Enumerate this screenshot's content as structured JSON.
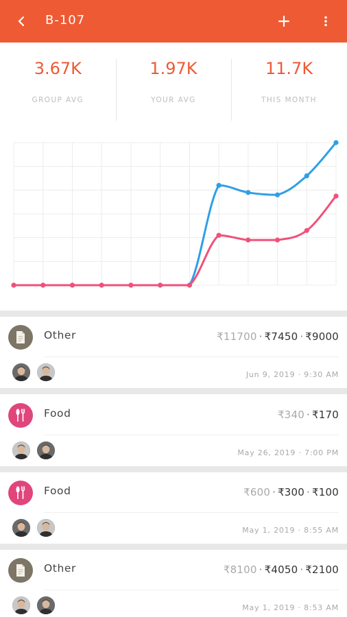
{
  "app_bar": {
    "title": "B-107",
    "back_icon": "chevron-left-icon",
    "add_icon": "plus-icon",
    "more_icon": "more-vertical-icon",
    "color": "#ee5a33"
  },
  "stats": [
    {
      "value": "3.67K",
      "label": "GROUP AVG"
    },
    {
      "value": "1.97K",
      "label": "YOUR AVG"
    },
    {
      "value": "11.7K",
      "label": "THIS MONTH"
    }
  ],
  "chart_data": {
    "type": "line",
    "title": "",
    "xlabel": "",
    "ylabel": "",
    "grid": true,
    "x": [
      1,
      2,
      3,
      4,
      5,
      6,
      7,
      8,
      9,
      10,
      11,
      12
    ],
    "ylim": [
      0,
      12000
    ],
    "series": [
      {
        "color": "#2e9fe6",
        "values": [
          0,
          0,
          0,
          0,
          0,
          0,
          0,
          8400,
          7800,
          7600,
          9200,
          12000
        ]
      },
      {
        "color": "#f0507a",
        "values": [
          0,
          0,
          0,
          0,
          0,
          0,
          0,
          4200,
          3800,
          3800,
          4600,
          7500
        ]
      }
    ]
  },
  "expenses": [
    {
      "category": "Other",
      "icon": "document-icon",
      "icon_color": "#7d7565",
      "amount_total": "₹11700",
      "shares": [
        "₹7450",
        "₹9000"
      ],
      "timestamp": "Jun 9, 2019 · 9:30 AM"
    },
    {
      "category": "Food",
      "icon": "fork-spoon-icon",
      "icon_color": "#e0457b",
      "amount_total": "₹340",
      "shares": [
        "₹170"
      ],
      "timestamp": "May 26, 2019 · 7:00 PM"
    },
    {
      "category": "Food",
      "icon": "fork-spoon-icon",
      "icon_color": "#e0457b",
      "amount_total": "₹600",
      "shares": [
        "₹300",
        "₹100"
      ],
      "timestamp": "May 1, 2019 · 8:55 AM"
    },
    {
      "category": "Other",
      "icon": "document-icon",
      "icon_color": "#7d7565",
      "amount_total": "₹8100",
      "shares": [
        "₹4050",
        "₹2100"
      ],
      "timestamp": "May 1, 2019 · 8:53 AM"
    }
  ]
}
